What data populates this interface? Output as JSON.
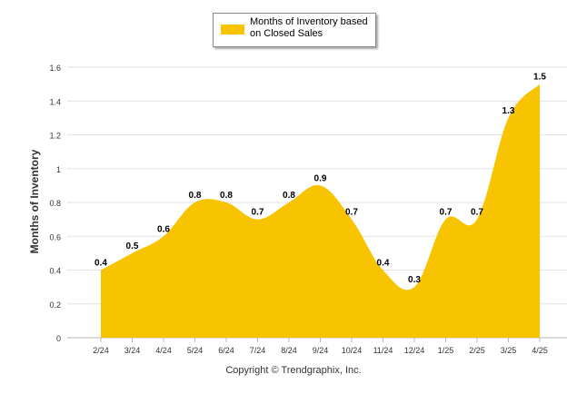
{
  "chart_data": {
    "type": "area",
    "categories": [
      "2/24",
      "3/24",
      "4/24",
      "5/24",
      "6/24",
      "7/24",
      "8/24",
      "9/24",
      "10/24",
      "11/24",
      "12/24",
      "1/25",
      "2/25",
      "3/25",
      "4/25"
    ],
    "series": [
      {
        "name": "Months of Inventory based on Closed Sales",
        "values": [
          0.4,
          0.5,
          0.6,
          0.8,
          0.8,
          0.7,
          0.8,
          0.9,
          0.7,
          0.4,
          0.3,
          0.7,
          0.7,
          1.3,
          1.5
        ],
        "color": "#f8c300"
      }
    ],
    "data_labels": [
      "0.4",
      "0.5",
      "0.6",
      "0.8",
      "0.8",
      "0.7",
      "0.8",
      "0.9",
      "0.7",
      "0.4",
      "0.3",
      "0.7",
      "0.7",
      "1.3",
      "1.5"
    ],
    "ylabel": "Months of Inventory",
    "xlabel": "",
    "ylim": [
      0,
      1.6
    ],
    "yticks": [
      "0",
      "0.2",
      "0.4",
      "0.6",
      "0.8",
      "1",
      "1.2",
      "1.4",
      "1.6"
    ],
    "grid": true,
    "legend_position": "top-center"
  },
  "copyright": "Copyright © Trendgraphix, Inc."
}
